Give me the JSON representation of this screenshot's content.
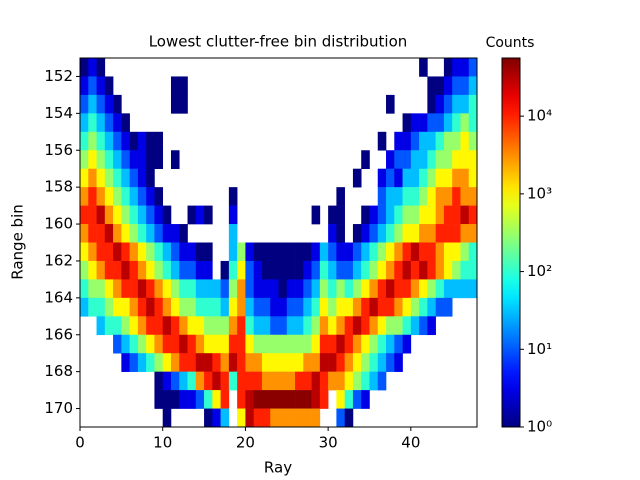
{
  "chart_data": {
    "type": "heatmap",
    "title": "Lowest clutter-free bin distribution",
    "xlabel": "Ray",
    "ylabel": "Range bin",
    "colorbar_label": "Counts",
    "colormap": "jet",
    "log_color": true,
    "clim": [
      1,
      56000
    ],
    "cticks": [
      {
        "value": 1,
        "label": "10⁰"
      },
      {
        "value": 10,
        "label": "10¹"
      },
      {
        "value": 100,
        "label": "10²"
      },
      {
        "value": 1000,
        "label": "10³"
      },
      {
        "value": 10000,
        "label": "10⁴"
      }
    ],
    "xlim": [
      0,
      48
    ],
    "xticks": [
      0,
      10,
      20,
      30,
      40
    ],
    "ylim": [
      171,
      151
    ],
    "yticks": [
      152,
      154,
      156,
      158,
      160,
      162,
      164,
      166,
      168,
      170
    ],
    "xbins": [
      0,
      1,
      2,
      3,
      4,
      5,
      6,
      7,
      8,
      9,
      10,
      11,
      12,
      13,
      14,
      15,
      16,
      17,
      18,
      19,
      20,
      21,
      22,
      23,
      24,
      25,
      26,
      27,
      28,
      29,
      30,
      31,
      32,
      33,
      34,
      35,
      36,
      37,
      38,
      39,
      40,
      41,
      42,
      43,
      44,
      45,
      46,
      47,
      48
    ],
    "ybins": [
      151,
      152,
      153,
      154,
      155,
      156,
      157,
      158,
      159,
      160,
      161,
      162,
      163,
      164,
      165,
      166,
      167,
      168,
      169,
      170,
      171
    ],
    "values": [
      [
        1,
        3,
        1,
        null,
        null,
        null,
        null,
        null,
        null,
        null,
        null,
        null,
        null,
        null,
        null,
        null,
        null,
        null,
        null,
        null,
        null,
        null,
        null,
        null,
        null,
        null,
        null,
        null,
        null,
        null,
        null,
        null,
        null,
        null,
        null,
        null,
        null,
        null,
        null,
        null,
        null,
        1,
        null,
        null,
        1,
        3,
        3,
        10
      ],
      [
        3,
        10,
        3,
        1,
        null,
        null,
        null,
        null,
        null,
        null,
        null,
        1,
        1,
        null,
        null,
        null,
        null,
        null,
        null,
        null,
        null,
        null,
        null,
        null,
        null,
        null,
        null,
        null,
        null,
        null,
        null,
        null,
        null,
        null,
        null,
        null,
        null,
        null,
        null,
        null,
        null,
        null,
        1,
        1,
        3,
        10,
        10,
        30
      ],
      [
        10,
        30,
        10,
        3,
        1,
        null,
        null,
        null,
        null,
        null,
        null,
        1,
        1,
        null,
        null,
        null,
        null,
        null,
        null,
        null,
        null,
        null,
        null,
        null,
        null,
        null,
        null,
        null,
        null,
        null,
        null,
        null,
        null,
        null,
        null,
        null,
        null,
        1,
        null,
        null,
        null,
        null,
        1,
        3,
        10,
        30,
        30,
        100
      ],
      [
        30,
        100,
        30,
        10,
        3,
        1,
        null,
        null,
        null,
        null,
        null,
        null,
        null,
        null,
        null,
        null,
        null,
        null,
        null,
        null,
        null,
        null,
        null,
        null,
        null,
        null,
        null,
        null,
        null,
        null,
        null,
        null,
        null,
        null,
        null,
        null,
        null,
        null,
        null,
        1,
        3,
        3,
        10,
        10,
        30,
        100,
        300,
        100
      ],
      [
        100,
        300,
        100,
        30,
        10,
        3,
        1,
        3,
        1,
        1,
        null,
        null,
        null,
        null,
        null,
        null,
        null,
        null,
        null,
        null,
        null,
        null,
        null,
        null,
        null,
        null,
        null,
        null,
        null,
        null,
        null,
        null,
        null,
        null,
        null,
        null,
        1,
        null,
        3,
        3,
        10,
        30,
        30,
        100,
        300,
        300,
        1000,
        300
      ],
      [
        300,
        1000,
        300,
        100,
        30,
        10,
        3,
        3,
        1,
        1,
        null,
        1,
        null,
        null,
        null,
        null,
        null,
        null,
        null,
        null,
        null,
        null,
        null,
        null,
        null,
        null,
        null,
        null,
        null,
        null,
        null,
        null,
        null,
        null,
        1,
        null,
        null,
        3,
        10,
        10,
        30,
        30,
        100,
        300,
        300,
        1000,
        1000,
        1000
      ],
      [
        1000,
        3000,
        1000,
        300,
        100,
        30,
        10,
        3,
        1,
        null,
        null,
        null,
        null,
        null,
        null,
        null,
        null,
        null,
        null,
        null,
        null,
        null,
        null,
        null,
        null,
        null,
        null,
        null,
        null,
        null,
        null,
        null,
        null,
        1,
        null,
        null,
        3,
        10,
        3,
        30,
        30,
        100,
        300,
        1000,
        1000,
        3000,
        3000,
        1000
      ],
      [
        3000,
        10000,
        3000,
        1000,
        300,
        100,
        30,
        10,
        3,
        1,
        null,
        null,
        null,
        null,
        null,
        null,
        null,
        null,
        1,
        null,
        null,
        null,
        null,
        null,
        null,
        null,
        null,
        null,
        null,
        null,
        null,
        1,
        null,
        null,
        null,
        null,
        10,
        30,
        30,
        100,
        100,
        300,
        1000,
        3000,
        3000,
        10000,
        3000,
        3000
      ],
      [
        10000,
        10000,
        30000,
        3000,
        1000,
        300,
        100,
        30,
        10,
        3,
        1,
        null,
        null,
        1,
        3,
        1,
        null,
        null,
        3,
        null,
        null,
        null,
        null,
        null,
        null,
        null,
        null,
        null,
        1,
        null,
        1,
        1,
        null,
        null,
        1,
        3,
        10,
        30,
        100,
        300,
        300,
        1000,
        1000,
        3000,
        10000,
        10000,
        30000,
        10000
      ],
      [
        3000,
        10000,
        10000,
        30000,
        3000,
        1000,
        300,
        100,
        30,
        10,
        3,
        3,
        1,
        null,
        null,
        null,
        null,
        null,
        30,
        null,
        null,
        null,
        null,
        null,
        null,
        null,
        null,
        null,
        null,
        null,
        3,
        1,
        null,
        1,
        3,
        10,
        30,
        100,
        300,
        1000,
        1000,
        3000,
        3000,
        10000,
        10000,
        10000,
        3000,
        3000
      ],
      [
        1000,
        3000,
        10000,
        10000,
        30000,
        10000,
        3000,
        1000,
        300,
        100,
        30,
        10,
        3,
        3,
        1,
        1,
        null,
        null,
        30,
        300,
        3,
        1,
        1,
        1,
        1,
        1,
        1,
        1,
        3,
        30,
        10,
        3,
        3,
        10,
        30,
        100,
        300,
        1000,
        3000,
        10000,
        30000,
        10000,
        10000,
        3000,
        1000,
        1000,
        300,
        100
      ],
      [
        300,
        1000,
        3000,
        10000,
        10000,
        30000,
        10000,
        3000,
        1000,
        300,
        100,
        30,
        10,
        10,
        3,
        3,
        null,
        1,
        100,
        1000,
        10,
        3,
        1,
        1,
        1,
        1,
        1,
        3,
        10,
        100,
        30,
        10,
        10,
        30,
        100,
        300,
        1000,
        3000,
        10000,
        30000,
        10000,
        30000,
        10000,
        3000,
        1000,
        300,
        100,
        100
      ],
      [
        100,
        300,
        300,
        1000,
        3000,
        10000,
        10000,
        30000,
        10000,
        3000,
        1000,
        300,
        100,
        100,
        30,
        30,
        30,
        10,
        300,
        3000,
        10,
        3,
        3,
        3,
        1,
        3,
        3,
        10,
        30,
        300,
        100,
        300,
        100,
        300,
        1000,
        3000,
        10000,
        30000,
        10000,
        10000,
        3000,
        1000,
        300,
        100,
        30,
        30,
        30,
        30
      ],
      [
        30,
        100,
        100,
        300,
        1000,
        1000,
        3000,
        10000,
        30000,
        10000,
        3000,
        1000,
        300,
        300,
        100,
        100,
        100,
        30,
        1000,
        3000,
        30,
        10,
        10,
        3,
        3,
        10,
        10,
        30,
        100,
        1000,
        300,
        1000,
        1000,
        3000,
        10000,
        30000,
        10000,
        10000,
        3000,
        1000,
        300,
        100,
        30,
        10,
        10,
        null,
        null,
        null
      ],
      [
        null,
        null,
        30,
        100,
        100,
        300,
        1000,
        3000,
        10000,
        10000,
        30000,
        10000,
        3000,
        1000,
        1000,
        300,
        300,
        300,
        3000,
        10000,
        100,
        30,
        30,
        10,
        10,
        30,
        30,
        100,
        300,
        3000,
        1000,
        3000,
        10000,
        30000,
        10000,
        3000,
        1000,
        300,
        300,
        100,
        30,
        10,
        3,
        null,
        null,
        null,
        null,
        null
      ],
      [
        null,
        null,
        null,
        null,
        10,
        30,
        100,
        300,
        1000,
        3000,
        10000,
        10000,
        30000,
        10000,
        3000,
        1000,
        1000,
        1000,
        10000,
        10000,
        1000,
        300,
        300,
        300,
        300,
        300,
        300,
        300,
        1000,
        10000,
        10000,
        30000,
        10000,
        3000,
        1000,
        300,
        100,
        30,
        10,
        3,
        null,
        null,
        null,
        null,
        null,
        null,
        null,
        null
      ],
      [
        null,
        null,
        null,
        null,
        null,
        3,
        10,
        30,
        100,
        300,
        1000,
        3000,
        10000,
        10000,
        30000,
        30000,
        10000,
        3000,
        30000,
        10000,
        3000,
        3000,
        1000,
        1000,
        1000,
        1000,
        1000,
        3000,
        3000,
        30000,
        30000,
        10000,
        3000,
        1000,
        300,
        100,
        30,
        10,
        3,
        null,
        null,
        null,
        null,
        null,
        null,
        null,
        null,
        null
      ],
      [
        null,
        null,
        null,
        null,
        null,
        null,
        null,
        null,
        null,
        1,
        3,
        10,
        30,
        100,
        3000,
        10000,
        30000,
        10000,
        100,
        10000,
        10000,
        10000,
        3000,
        3000,
        3000,
        3000,
        10000,
        10000,
        30000,
        10000,
        3000,
        3000,
        1000,
        300,
        100,
        30,
        10,
        null,
        null,
        null,
        null,
        null,
        null,
        null,
        null,
        null,
        null,
        null
      ],
      [
        null,
        null,
        null,
        null,
        null,
        null,
        null,
        null,
        null,
        1,
        1,
        1,
        3,
        3,
        10,
        100,
        1000,
        10000,
        null,
        10000,
        30000,
        50000,
        50000,
        50000,
        50000,
        50000,
        50000,
        50000,
        30000,
        10000,
        null,
        1000,
        100,
        10,
        3,
        null,
        null,
        null,
        null,
        null,
        null,
        null,
        null,
        null,
        null,
        null,
        null,
        null
      ],
      [
        null,
        null,
        null,
        null,
        null,
        null,
        null,
        null,
        null,
        null,
        1,
        null,
        null,
        null,
        null,
        1,
        3,
        30,
        null,
        1000,
        30000,
        10000,
        10000,
        3000,
        3000,
        3000,
        3000,
        3000,
        3000,
        null,
        null,
        10,
        1,
        null,
        null,
        null,
        null,
        null,
        null,
        null,
        null,
        null,
        null,
        null,
        null,
        null,
        null,
        null
      ]
    ]
  }
}
